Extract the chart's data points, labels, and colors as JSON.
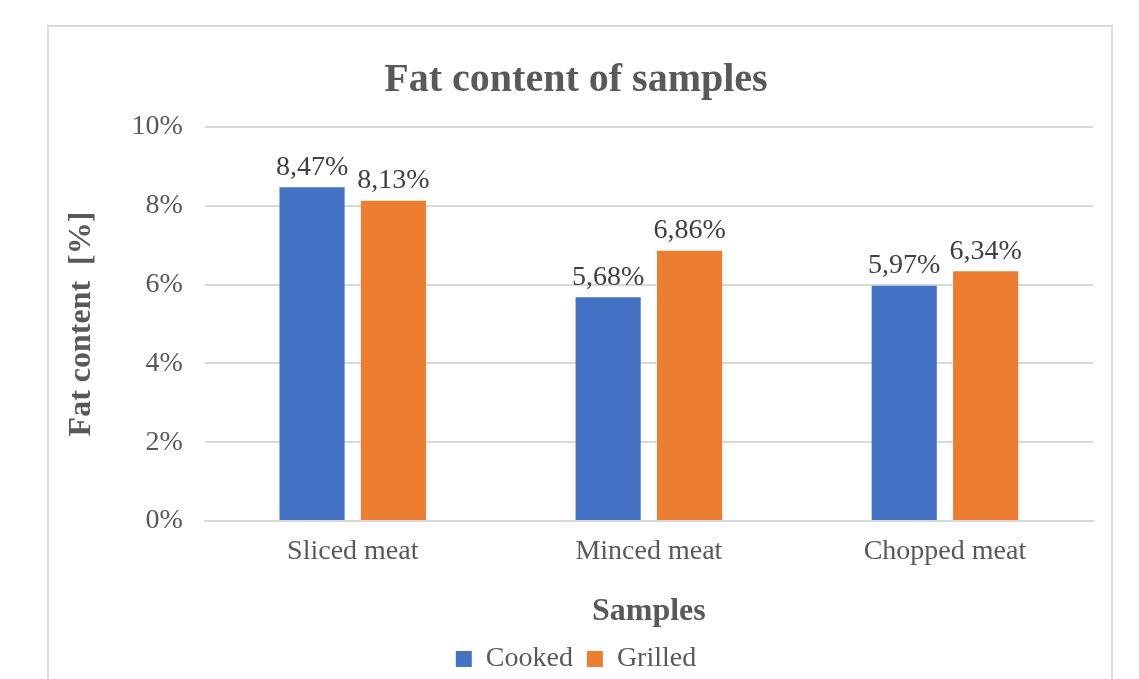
{
  "chart_data": {
    "type": "bar",
    "title": "Fat content of samples",
    "xlabel": "Samples",
    "ylabel": "Fat content  [%]",
    "categories": [
      "Sliced meat",
      "Minced meat",
      "Chopped meat"
    ],
    "series": [
      {
        "name": "Cooked",
        "color": "#4472c4",
        "values": [
          8.47,
          5.68,
          5.97
        ],
        "value_labels": [
          "8,47%",
          "5,68%",
          "5,97%"
        ]
      },
      {
        "name": "Grilled",
        "color": "#ed7d31",
        "values": [
          8.13,
          6.86,
          6.34
        ],
        "value_labels": [
          "8,13%",
          "6,86%",
          "6,34%"
        ]
      }
    ],
    "ylim": [
      0,
      10
    ],
    "yticks": [
      {
        "value": 0,
        "label": "0%"
      },
      {
        "value": 2,
        "label": "2%"
      },
      {
        "value": 4,
        "label": "4%"
      },
      {
        "value": 6,
        "label": "6%"
      },
      {
        "value": 8,
        "label": "8%"
      },
      {
        "value": 10,
        "label": "10%"
      }
    ],
    "grid": "y",
    "legend": "bottom"
  }
}
